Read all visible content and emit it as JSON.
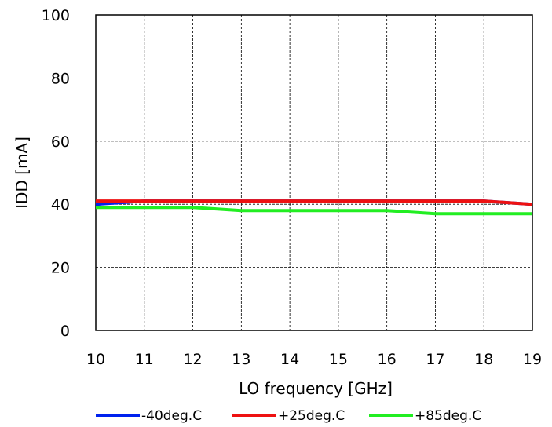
{
  "chart_data": {
    "type": "line",
    "xlabel": "LO frequency [GHz]",
    "ylabel": "IDD [mA]",
    "xlim": [
      10,
      19
    ],
    "ylim": [
      0,
      100
    ],
    "x_ticks": [
      10,
      11,
      12,
      13,
      14,
      15,
      16,
      17,
      18,
      19
    ],
    "y_ticks": [
      0,
      20,
      40,
      60,
      80,
      100
    ],
    "grid": true,
    "legend_position": "bottom",
    "x": [
      10,
      11,
      12,
      13,
      14,
      15,
      16,
      17,
      18,
      19
    ],
    "series": [
      {
        "name": "-40deg.C",
        "color": "#0022ee",
        "values": [
          40,
          41,
          41,
          41,
          41,
          41,
          41,
          41,
          41,
          40
        ]
      },
      {
        "name": "+25deg.C",
        "color": "#ee1111",
        "values": [
          41,
          41,
          41,
          41,
          41,
          41,
          41,
          41,
          41,
          40
        ]
      },
      {
        "name": "+85deg.C",
        "color": "#22ee22",
        "values": [
          39,
          39,
          39,
          38,
          38,
          38,
          38,
          37,
          37,
          37
        ]
      }
    ]
  }
}
